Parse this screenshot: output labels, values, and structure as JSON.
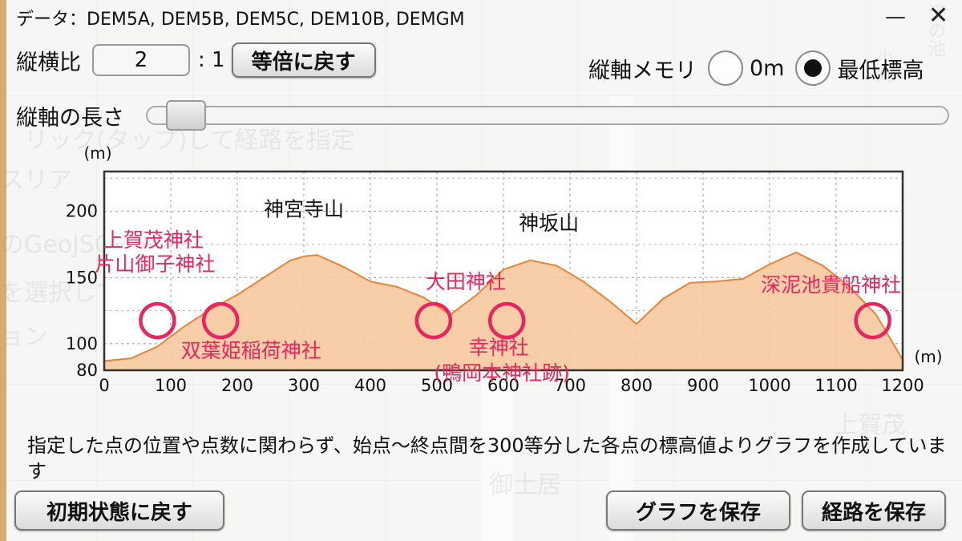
{
  "header": {
    "data_sources": "データ：DEM5A, DEM5B, DEM5C, DEM10B, DEMGM",
    "menu_icon": "minimize-icon",
    "close_icon": "close-icon"
  },
  "aspect": {
    "label": "縦横比",
    "value": "2",
    "suffix": ": 1",
    "reset_button": "等倍に戻す"
  },
  "vertical_scale": {
    "label": "縦軸メモリ",
    "options": [
      {
        "label": "0m",
        "selected": false
      },
      {
        "label": "最低標高",
        "selected": true
      }
    ]
  },
  "vertical_length": {
    "label": "縦軸の長さ",
    "slider_value_fraction": 0.02
  },
  "chart_data": {
    "type": "area",
    "title": "",
    "xlabel": "(m)",
    "ylabel": "(m)",
    "x_ticks": [
      "0",
      "100",
      "200",
      "300",
      "400",
      "500",
      "600",
      "700",
      "800",
      "900",
      "1000",
      "1100",
      "1200"
    ],
    "y_ticks": [
      "80",
      "100",
      "150",
      "200"
    ],
    "xlim": [
      0,
      1200
    ],
    "ylim": [
      80,
      230
    ],
    "grid": true,
    "fill_color": "#f7c9a0",
    "line_color": "#e8843a",
    "x": [
      0,
      40,
      80,
      120,
      160,
      200,
      240,
      280,
      300,
      320,
      360,
      400,
      440,
      480,
      520,
      560,
      600,
      640,
      680,
      720,
      760,
      800,
      840,
      880,
      920,
      960,
      1000,
      1040,
      1080,
      1120,
      1160,
      1200
    ],
    "y": [
      87,
      89,
      98,
      113,
      126,
      137,
      150,
      163,
      166,
      167,
      158,
      147,
      143,
      135,
      122,
      137,
      156,
      163,
      159,
      147,
      132,
      115,
      134,
      146,
      147,
      149,
      160,
      169,
      159,
      143,
      122,
      88
    ],
    "annotations": [
      {
        "text": "神宮寺山",
        "x": 300,
        "y": 168,
        "color": "#111111"
      },
      {
        "text": "神坂山",
        "x": 620,
        "y": 163,
        "color": "#111111"
      },
      {
        "text": "上賀茂神社",
        "x": 80,
        "y": 115,
        "color": "#e8265e",
        "marker": true
      },
      {
        "text": "片山御子神社",
        "x": 80,
        "y": 115,
        "color": "#e8265e"
      },
      {
        "text": "双葉姫稲荷神社",
        "x": 175,
        "y": 115,
        "color": "#e8265e",
        "marker": true
      },
      {
        "text": "大田神社",
        "x": 495,
        "y": 115,
        "color": "#e8265e",
        "marker": true
      },
      {
        "text": "幸神社",
        "x": 605,
        "y": 115,
        "color": "#e8265e",
        "marker": true
      },
      {
        "text": "(鴨岡本神社跡)",
        "x": 605,
        "y": 115,
        "color": "#e8265e"
      },
      {
        "text": "深泥池貴船神社",
        "x": 1155,
        "y": 115,
        "color": "#e8265e",
        "marker": true
      }
    ]
  },
  "note": "指定した点の位置や点数に関わらず、始点〜終点間を300等分した各点の標高値よりグラフを作成しています",
  "buttons": {
    "reset_initial": "初期状態に戻す",
    "save_graph": "グラフを保存",
    "save_route": "経路を保存"
  }
}
